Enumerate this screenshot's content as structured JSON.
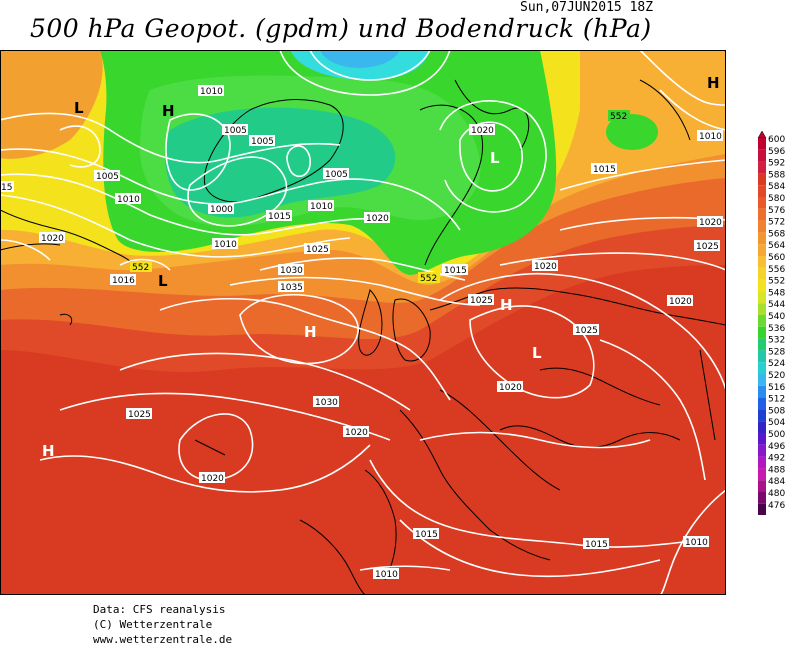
{
  "header": {
    "title": "500 hPa Geopot. (gpdm) und Bodendruck (hPa)",
    "date": "Sun,07JUN2015 18Z"
  },
  "credits": {
    "line1": "Data: CFS reanalysis",
    "line2": "(C) Wetterzentrale",
    "line3": "www.wetterzentrale.de"
  },
  "colors": {
    "background_deep_red": "#d83a22",
    "red": "#e04a28",
    "orange_red": "#e96a2a",
    "orange": "#f29030",
    "light_orange": "#f7b034",
    "yellow": "#f3e21c",
    "green": "#39d62e",
    "light_green": "#5ee03c",
    "teal": "#22cc88",
    "cyan": "#33dddd",
    "isobar": "#ffffff",
    "coast": "#000000"
  },
  "legend": {
    "values": [
      "600",
      "596",
      "592",
      "588",
      "584",
      "580",
      "576",
      "572",
      "568",
      "564",
      "560",
      "556",
      "552",
      "548",
      "544",
      "540",
      "536",
      "532",
      "528",
      "524",
      "520",
      "516",
      "512",
      "508",
      "504",
      "500",
      "496",
      "492",
      "488",
      "484",
      "480",
      "476"
    ],
    "colors": [
      "#c0002e",
      "#c8103c",
      "#d22040",
      "#d83a22",
      "#e04a28",
      "#e85a2a",
      "#ec702c",
      "#f08230",
      "#f29630",
      "#f5a834",
      "#f7be36",
      "#f5d42a",
      "#f3e21c",
      "#d6e62a",
      "#a8e030",
      "#6cd832",
      "#3ad230",
      "#22cc70",
      "#22c8a8",
      "#28d0d0",
      "#3ab8ee",
      "#2c8cf0",
      "#2060e8",
      "#2040d0",
      "#3424c8",
      "#5a18c8",
      "#8a18c8",
      "#b018c0",
      "#c818b0",
      "#a8108c",
      "#7a0a6a",
      "#4a0448"
    ]
  },
  "map": {
    "centers": [
      {
        "type": "L",
        "label": "L"
      },
      {
        "type": "H",
        "label": "H"
      },
      {
        "type": "L",
        "label": "L"
      },
      {
        "type": "L",
        "label": "L"
      },
      {
        "type": "H",
        "label": "H"
      },
      {
        "type": "H",
        "label": "H"
      },
      {
        "type": "L",
        "label": "L"
      },
      {
        "type": "H",
        "label": "H"
      },
      {
        "type": "H",
        "label": "H"
      }
    ],
    "isobar_labels": [
      "1010",
      "1005",
      "1005",
      "1000",
      "1010",
      "1015",
      "1010",
      "1020",
      "1025",
      "1030",
      "1035",
      "1020",
      "1015",
      "1025",
      "1020",
      "1025",
      "1020",
      "1010",
      "1015",
      "1025",
      "1020",
      "1030",
      "1025",
      "1020",
      "1020",
      "1015",
      "1015",
      "1010",
      "1010",
      "1005",
      "1020",
      "15",
      "1020",
      "1005",
      "1010",
      "1016",
      "1000"
    ],
    "height_labels": [
      "552",
      "552",
      "552"
    ]
  }
}
